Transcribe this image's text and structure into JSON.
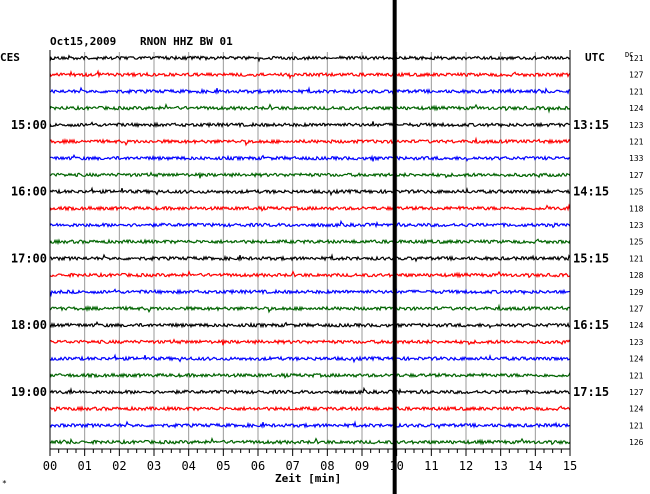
{
  "header": {
    "date": "Oct15,2009",
    "station": "RNON HHZ BW 01",
    "left_timezone": "CES",
    "right_timezone": "UTC",
    "dc_label": "DC"
  },
  "footnote": "*",
  "chart_data": {
    "type": "line",
    "xlabel": "Zeit [min]",
    "xlim": [
      0,
      15
    ],
    "x_ticks": [
      "00",
      "01",
      "02",
      "03",
      "04",
      "05",
      "06",
      "07",
      "08",
      "09",
      "10",
      "11",
      "12",
      "13",
      "14",
      "15"
    ],
    "trace_colors": [
      "#000000",
      "#ff0000",
      "#0000ff",
      "#006400"
    ],
    "left_hour_labels": [
      "15:00",
      "16:00",
      "17:00",
      "18:00",
      "19:00"
    ],
    "right_hour_labels": [
      "13:15",
      "14:15",
      "15:15",
      "16:15",
      "17:15"
    ],
    "dc_values": [
      "121",
      "127",
      "121",
      "124",
      "123",
      "121",
      "133",
      "127",
      "125",
      "118",
      "123",
      "125",
      "121",
      "128",
      "129",
      "127",
      "124",
      "123",
      "124",
      "121",
      "127",
      "124",
      "121",
      "126"
    ],
    "event_marker_minute": 10
  }
}
